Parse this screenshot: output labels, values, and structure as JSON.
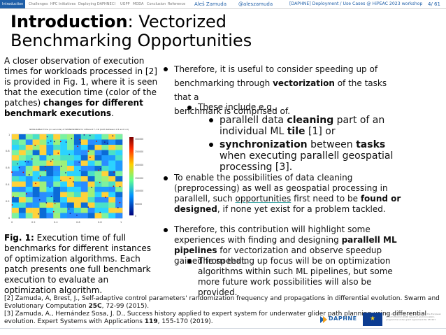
{
  "navbar": {
    "items": [
      "Introduction",
      "Challenges",
      "HPC Initiatives",
      "Deploying DAPHNE",
      "CI",
      "UGPP",
      "MODA",
      "Conclusion",
      "Reference"
    ],
    "author": "Aleš Zamuda",
    "twitter": "@aleszamuda",
    "breadcrumb": "[DAPHNE] Deployment / Use Cases @ HiPEAC 2023 workshop",
    "page": "4/ 61",
    "accent": "#1f5fa8"
  },
  "title": {
    "bold": "Introduction",
    "rest": ": Vectorized Benchmarking Opportunities"
  },
  "left_text": {
    "intro_before": "A closer observation of execution times for workloads processed in [2] is provided in Fig. 1, where it is seen that the execution time (color of the patches) ",
    "intro_bold": "changes for different benchmark executions",
    "intro_after": "."
  },
  "figure": {
    "chart_title": "NDSS.RdBell Time (in seconds) of SPSNDSDMRS for different F, CR (both between 0.5 and 1.0)",
    "x_ticks": [
      "0",
      "0.2",
      "0.4",
      "0.6",
      "0.8",
      "1"
    ],
    "y_ticks": [
      "0",
      "0.2",
      "0.4",
      "0.6",
      "0.8",
      "1"
    ],
    "colorbar_ticks": [
      "300000",
      "250000",
      "200000",
      "150000",
      "100000",
      "50000",
      "0"
    ],
    "caption_label": "Fig. 1:",
    "caption_text": " Execution time of full benchmarks for different instances of optimization algorithms. Each patch presents one full benchmark execution to evaluate an optimization algorithm."
  },
  "right": {
    "b1_line1": "Therefore, it is useful to consider speeding up of",
    "b1_line2a": "benchmarking through ",
    "b1_line2b": "vectorization",
    "b1_line2c": " of the tasks that a",
    "b1_line3": "benchmark is comprised of.",
    "sub1": "These include e.g.,",
    "s1a": "parallell data ",
    "s1b": "cleaning",
    "s1c": " part of an individual ML ",
    "s1d": "tile",
    "s1e": " [1] or",
    "s2a": "synchronization",
    "s2b": " between ",
    "s2c": "tasks",
    "s2d": " when executing parallell geospatial processing [3].",
    "b2a": "To enable the possibilities of data cleaning (preprocessing) as well as geospatial processing in parallell, such ",
    "b2b": "opportunities",
    "b2c": " first need to be ",
    "b2d": "found or designed",
    "b2e": ", if none yet exist for a problem tackled.",
    "b3a": "Therefore, this contribution will highlight some experiences with finding and designing ",
    "b3b": "parallell ML pipelines",
    "b3c": " for vectorization and observe speedup gained from that.",
    "sub3": "The speeding up focus will be on optimization algorithms within such ML pipelines, but some more future work possibilities will also be provided."
  },
  "references": {
    "r2a": "[2] Zamuda, A, Brest, J., Self-adaptive control parameters' randomization frequency and propagations in differential evolution. Swarm and Evolutionary Computation ",
    "r2b": "25C",
    "r2c": ", 72-99 (2015).",
    "r3a": "[3] Zamuda, A., Hernández Sosa, J. D., Success history applied to expert system for underwater glider path planning using differential evolution. Expert Systems with Applications ",
    "r3b": "119",
    "r3c": ", 155-170 (2019)."
  },
  "footer": {
    "logo_text": "DAPHNE",
    "funding_text": "This project has received funding from the European Union's Horizon 2020 research and innovation programme under grant agreement No 957407."
  }
}
